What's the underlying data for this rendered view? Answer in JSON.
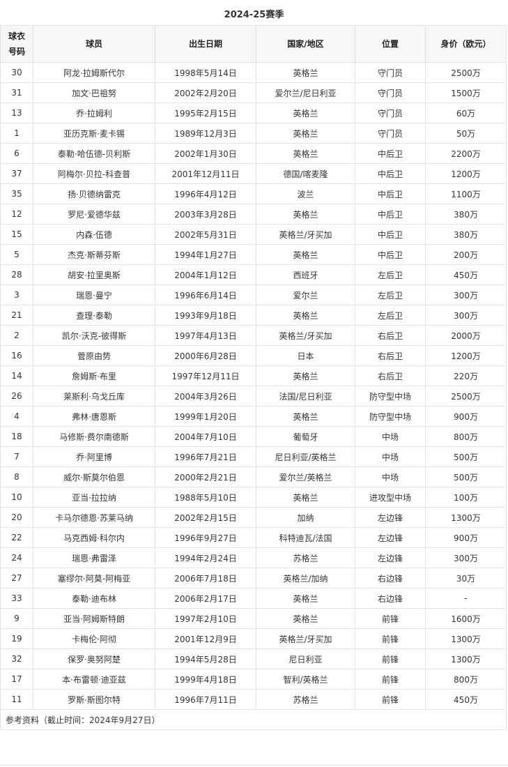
{
  "title": "2024-25赛季",
  "headers": [
    "球衣号码",
    "球员",
    "出生日期",
    "国家/地区",
    "位置",
    "身价（欧元）"
  ],
  "rows": [
    [
      "30",
      "阿龙·拉姆斯代尔",
      "1998年5月14日",
      "英格兰",
      "守门员",
      "2500万"
    ],
    [
      "31",
      "加文·巴祖努",
      "2002年2月20日",
      "爱尔兰/尼日利亚",
      "守门员",
      "1500万"
    ],
    [
      "13",
      "乔·拉姆利",
      "1995年2月15日",
      "英格兰",
      "守门员",
      "60万"
    ],
    [
      "1",
      "亚历克斯·麦卡锡",
      "1989年12月3日",
      "英格兰",
      "守门员",
      "50万"
    ],
    [
      "6",
      "泰勒·哈伍德-贝利斯",
      "2002年1月30日",
      "英格兰",
      "中后卫",
      "2200万"
    ],
    [
      "37",
      "阿梅尔·贝拉-科查普",
      "2001年12月11日",
      "德国/喀麦隆",
      "中后卫",
      "1200万"
    ],
    [
      "35",
      "扬·贝德纳雷克",
      "1996年4月12日",
      "波兰",
      "中后卫",
      "1100万"
    ],
    [
      "12",
      "罗尼·爱德华兹",
      "2003年3月28日",
      "英格兰",
      "中后卫",
      "380万"
    ],
    [
      "15",
      "内森·伍德",
      "2002年5月31日",
      "英格兰/牙买加",
      "中后卫",
      "380万"
    ],
    [
      "5",
      "杰克·斯蒂芬斯",
      "1994年1月27日",
      "英格兰",
      "中后卫",
      "200万"
    ],
    [
      "28",
      "胡安·拉里奥斯",
      "2004年1月12日",
      "西班牙",
      "左后卫",
      "450万"
    ],
    [
      "3",
      "瑞恩·曼宁",
      "1996年6月14日",
      "爱尔兰",
      "左后卫",
      "300万"
    ],
    [
      "21",
      "查理·泰勒",
      "1993年9月18日",
      "英格兰",
      "左后卫",
      "300万"
    ],
    [
      "2",
      "凯尔·沃克-彼得斯",
      "1997年4月13日",
      "英格兰/牙买加",
      "右后卫",
      "2000万"
    ],
    [
      "16",
      "菅原由势",
      "2000年6月28日",
      "日本",
      "右后卫",
      "1200万"
    ],
    [
      "14",
      "詹姆斯·布里",
      "1997年12月11日",
      "英格兰",
      "右后卫",
      "220万"
    ],
    [
      "26",
      "莱斯利·乌戈丘库",
      "2004年3月26日",
      "法国/尼日利亚",
      "防守型中场",
      "2500万"
    ],
    [
      "4",
      "弗林·唐恩斯",
      "1999年1月20日",
      "英格兰",
      "防守型中场",
      "900万"
    ],
    [
      "18",
      "马修斯·费尔南德斯",
      "2004年7月10日",
      "葡萄牙",
      "中场",
      "800万"
    ],
    [
      "7",
      "乔·阿里博",
      "1996年7月21日",
      "尼日利亚/英格兰",
      "中场",
      "500万"
    ],
    [
      "8",
      "威尔·斯莫尔伯恩",
      "2000年2月21日",
      "爱尔兰/英格兰",
      "中场",
      "500万"
    ],
    [
      "10",
      "亚当·拉拉纳",
      "1988年5月10日",
      "英格兰",
      "进攻型中场",
      "100万"
    ],
    [
      "20",
      "卡马尔德恩·苏莱马纳",
      "2002年2月15日",
      "加纳",
      "左边锋",
      "1300万"
    ],
    [
      "22",
      "马克西姆·科尔内",
      "1996年9月27日",
      "科特迪瓦/法国",
      "左边锋",
      "900万"
    ],
    [
      "24",
      "瑞恩·弗雷泽",
      "1994年2月24日",
      "苏格兰",
      "左边锋",
      "300万"
    ],
    [
      "27",
      "塞缪尔·阿莫-阿梅亚",
      "2006年7月18日",
      "英格兰/加纳",
      "右边锋",
      "30万"
    ],
    [
      "33",
      "泰勒·迪布林",
      "2006年2月17日",
      "英格兰",
      "右边锋",
      "-"
    ],
    [
      "9",
      "亚当·阿姆斯特朗",
      "1997年2月10日",
      "英格兰",
      "前锋",
      "1600万"
    ],
    [
      "19",
      "卡梅伦·阿彻",
      "2001年12月9日",
      "英格兰/牙买加",
      "前锋",
      "1300万"
    ],
    [
      "32",
      "保罗·奥努阿楚",
      "1994年5月28日",
      "尼日利亚",
      "前锋",
      "1300万"
    ],
    [
      "17",
      "本·布雷顿·迪亚兹",
      "1999年4月18日",
      "智利/英格兰",
      "前锋",
      "800万"
    ],
    [
      "11",
      "罗斯·斯图尔特",
      "1996年7月11日",
      "苏格兰",
      "前锋",
      "450万"
    ]
  ],
  "footer": "参考资料（截止时间：2024年9月27日）"
}
